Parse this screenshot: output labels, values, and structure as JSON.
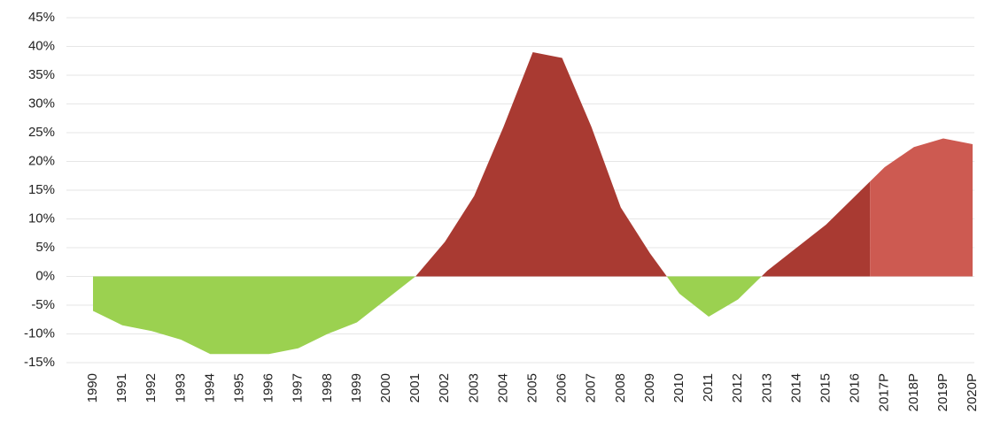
{
  "chart_data": {
    "type": "area",
    "categories": [
      "1990",
      "1991",
      "1992",
      "1993",
      "1994",
      "1995",
      "1996",
      "1997",
      "1998",
      "1999",
      "2000",
      "2001",
      "2002",
      "2003",
      "2004",
      "2005",
      "2006",
      "2007",
      "2008",
      "2009",
      "2010",
      "2011",
      "2012",
      "2013",
      "2014",
      "2015",
      "2016",
      "2017P",
      "2018P",
      "2019P",
      "2020P"
    ],
    "values": [
      -6,
      -8.5,
      -9.5,
      -11,
      -13.5,
      -13.5,
      -13.5,
      -12.5,
      -10,
      -8,
      -4,
      0,
      6,
      14,
      26,
      39,
      38,
      26,
      12,
      4,
      -3,
      -7,
      -4,
      1,
      5,
      9,
      14,
      19,
      22.5,
      24,
      23
    ],
    "colors": {
      "positive": "#a93a32",
      "negative": "#9bd150",
      "projected": "#cd5a51"
    },
    "ylim": [
      -15,
      45
    ],
    "yticks": [
      {
        "value": -15,
        "label": "-15%"
      },
      {
        "value": -10,
        "label": "-10%"
      },
      {
        "value": -5,
        "label": "-5%"
      },
      {
        "value": 0,
        "label": "0%"
      },
      {
        "value": 5,
        "label": "5%"
      },
      {
        "value": 10,
        "label": "10%"
      },
      {
        "value": 15,
        "label": "15%"
      },
      {
        "value": 20,
        "label": "20%"
      },
      {
        "value": 25,
        "label": "25%"
      },
      {
        "value": 30,
        "label": "30%"
      },
      {
        "value": 35,
        "label": "35%"
      },
      {
        "value": 40,
        "label": "40%"
      },
      {
        "value": 45,
        "label": "45%"
      }
    ],
    "grid": true
  }
}
